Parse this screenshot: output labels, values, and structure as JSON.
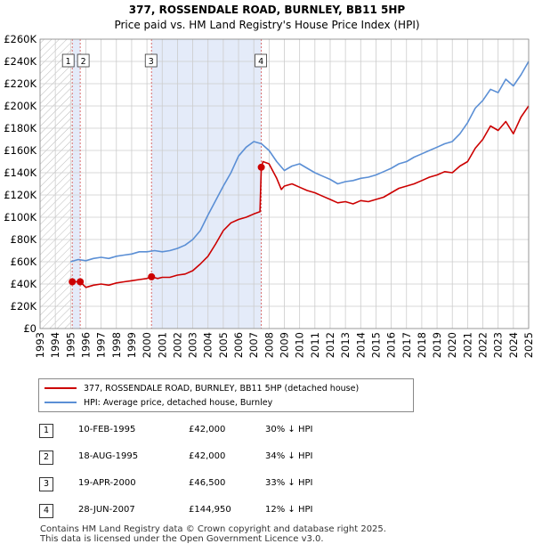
{
  "title_line1": "377, ROSSENDALE ROAD, BURNLEY, BB11 5HP",
  "title_line2": "Price paid vs. HM Land Registry's House Price Index (HPI)",
  "colors": {
    "property_line": "#cc0000",
    "hpi_line": "#5b8fd5",
    "shade": "#e4ebf9",
    "grid": "#cccccc",
    "vline": "#d96b6b"
  },
  "legend": {
    "property_label": "377, ROSSENDALE ROAD, BURNLEY, BB11 5HP (detached house)",
    "hpi_label": "HPI: Average price, detached house, Burnley"
  },
  "transactions": [
    {
      "num": "1",
      "date": "10-FEB-1995",
      "price": "£42,000",
      "hpi": "30% ↓ HPI"
    },
    {
      "num": "2",
      "date": "18-AUG-1995",
      "price": "£42,000",
      "hpi": "34% ↓ HPI"
    },
    {
      "num": "3",
      "date": "19-APR-2000",
      "price": "£46,500",
      "hpi": "33% ↓ HPI"
    },
    {
      "num": "4",
      "date": "28-JUN-2007",
      "price": "£144,950",
      "hpi": "12% ↓ HPI"
    }
  ],
  "footer": {
    "line1": "Contains HM Land Registry data © Crown copyright and database right 2025.",
    "line2": "This data is licensed under the Open Government Licence v3.0."
  },
  "chart_data": {
    "type": "line",
    "title": "Price paid vs. HM Land Registry's House Price Index (HPI)",
    "xlabel": "",
    "ylabel": "",
    "xlim": [
      1993,
      2025
    ],
    "ylim": [
      0,
      260000
    ],
    "x_ticks": [
      1993,
      1994,
      1995,
      1996,
      1997,
      1998,
      1999,
      2000,
      2001,
      2002,
      2003,
      2004,
      2005,
      2006,
      2007,
      2008,
      2009,
      2010,
      2011,
      2012,
      2013,
      2014,
      2015,
      2016,
      2017,
      2018,
      2019,
      2020,
      2021,
      2022,
      2023,
      2024,
      2025
    ],
    "y_ticks": [
      0,
      20000,
      40000,
      60000,
      80000,
      100000,
      120000,
      140000,
      160000,
      180000,
      200000,
      220000,
      240000,
      260000
    ],
    "y_tick_labels": [
      "£0",
      "£20K",
      "£40K",
      "£60K",
      "£80K",
      "£100K",
      "£120K",
      "£140K",
      "£160K",
      "£180K",
      "£200K",
      "£220K",
      "£240K",
      "£260K"
    ],
    "shaded_ranges": [
      [
        1995.11,
        1995.63
      ],
      [
        2000.3,
        2007.49
      ]
    ],
    "hatched_range": [
      1993,
      1995.11
    ],
    "markers": [
      {
        "label": "1",
        "x": 1995.11,
        "y": 42000
      },
      {
        "label": "2",
        "x": 1995.63,
        "y": 42000
      },
      {
        "label": "3",
        "x": 2000.3,
        "y": 46500
      },
      {
        "label": "4",
        "x": 2007.49,
        "y": 144950
      }
    ],
    "series": [
      {
        "name": "377, ROSSENDALE ROAD, BURNLEY, BB11 5HP (detached house)",
        "x": [
          1995.11,
          1995.5,
          1995.63,
          1996,
          1996.5,
          1997,
          1997.5,
          1998,
          1998.5,
          1999,
          1999.5,
          2000,
          2000.3,
          2000.7,
          2001,
          2001.5,
          2002,
          2002.5,
          2003,
          2003.5,
          2004,
          2004.5,
          2005,
          2005.5,
          2006,
          2006.5,
          2007,
          2007.4,
          2007.49,
          2007.6,
          2008,
          2008.5,
          2008.8,
          2009,
          2009.5,
          2010,
          2010.5,
          2011,
          2011.5,
          2012,
          2012.5,
          2013,
          2013.5,
          2014,
          2014.5,
          2015,
          2015.5,
          2016,
          2016.5,
          2017,
          2017.5,
          2018,
          2018.5,
          2019,
          2019.5,
          2020,
          2020.5,
          2021,
          2021.5,
          2022,
          2022.5,
          2023,
          2023.5,
          2024,
          2024.5,
          2025
        ],
        "values": [
          42000,
          42000,
          42000,
          37000,
          39000,
          40000,
          39000,
          41000,
          42000,
          43000,
          44000,
          45000,
          46500,
          45000,
          46000,
          46000,
          48000,
          49000,
          52000,
          58000,
          65000,
          76000,
          88000,
          95000,
          98000,
          100000,
          103000,
          105000,
          144950,
          150000,
          148000,
          135000,
          125000,
          128000,
          130000,
          127000,
          124000,
          122000,
          119000,
          116000,
          113000,
          114000,
          112000,
          115000,
          114000,
          116000,
          118000,
          122000,
          126000,
          128000,
          130000,
          133000,
          136000,
          138000,
          141000,
          140000,
          146000,
          150000,
          162000,
          170000,
          182000,
          178000,
          186000,
          175000,
          190000,
          200000
        ]
      },
      {
        "name": "HPI: Average price, detached house, Burnley",
        "x": [
          1995,
          1995.5,
          1996,
          1996.5,
          1997,
          1997.5,
          1998,
          1998.5,
          1999,
          1999.5,
          2000,
          2000.5,
          2001,
          2001.5,
          2002,
          2002.5,
          2003,
          2003.5,
          2004,
          2004.5,
          2005,
          2005.5,
          2006,
          2006.5,
          2007,
          2007.5,
          2008,
          2008.5,
          2009,
          2009.5,
          2010,
          2010.5,
          2011,
          2011.5,
          2012,
          2012.5,
          2013,
          2013.5,
          2014,
          2014.5,
          2015,
          2015.5,
          2016,
          2016.5,
          2017,
          2017.5,
          2018,
          2018.5,
          2019,
          2019.5,
          2020,
          2020.5,
          2021,
          2021.5,
          2022,
          2022.5,
          2023,
          2023.5,
          2024,
          2024.5,
          2025
        ],
        "values": [
          60000,
          62000,
          61000,
          63000,
          64000,
          63000,
          65000,
          66000,
          67000,
          69000,
          69000,
          70000,
          69000,
          70000,
          72000,
          75000,
          80000,
          88000,
          102000,
          115000,
          128000,
          140000,
          155000,
          163000,
          168000,
          166000,
          160000,
          150000,
          142000,
          146000,
          148000,
          144000,
          140000,
          137000,
          134000,
          130000,
          132000,
          133000,
          135000,
          136000,
          138000,
          141000,
          144000,
          148000,
          150000,
          154000,
          157000,
          160000,
          163000,
          166000,
          168000,
          175000,
          185000,
          198000,
          205000,
          215000,
          212000,
          224000,
          218000,
          228000,
          240000
        ]
      }
    ]
  }
}
